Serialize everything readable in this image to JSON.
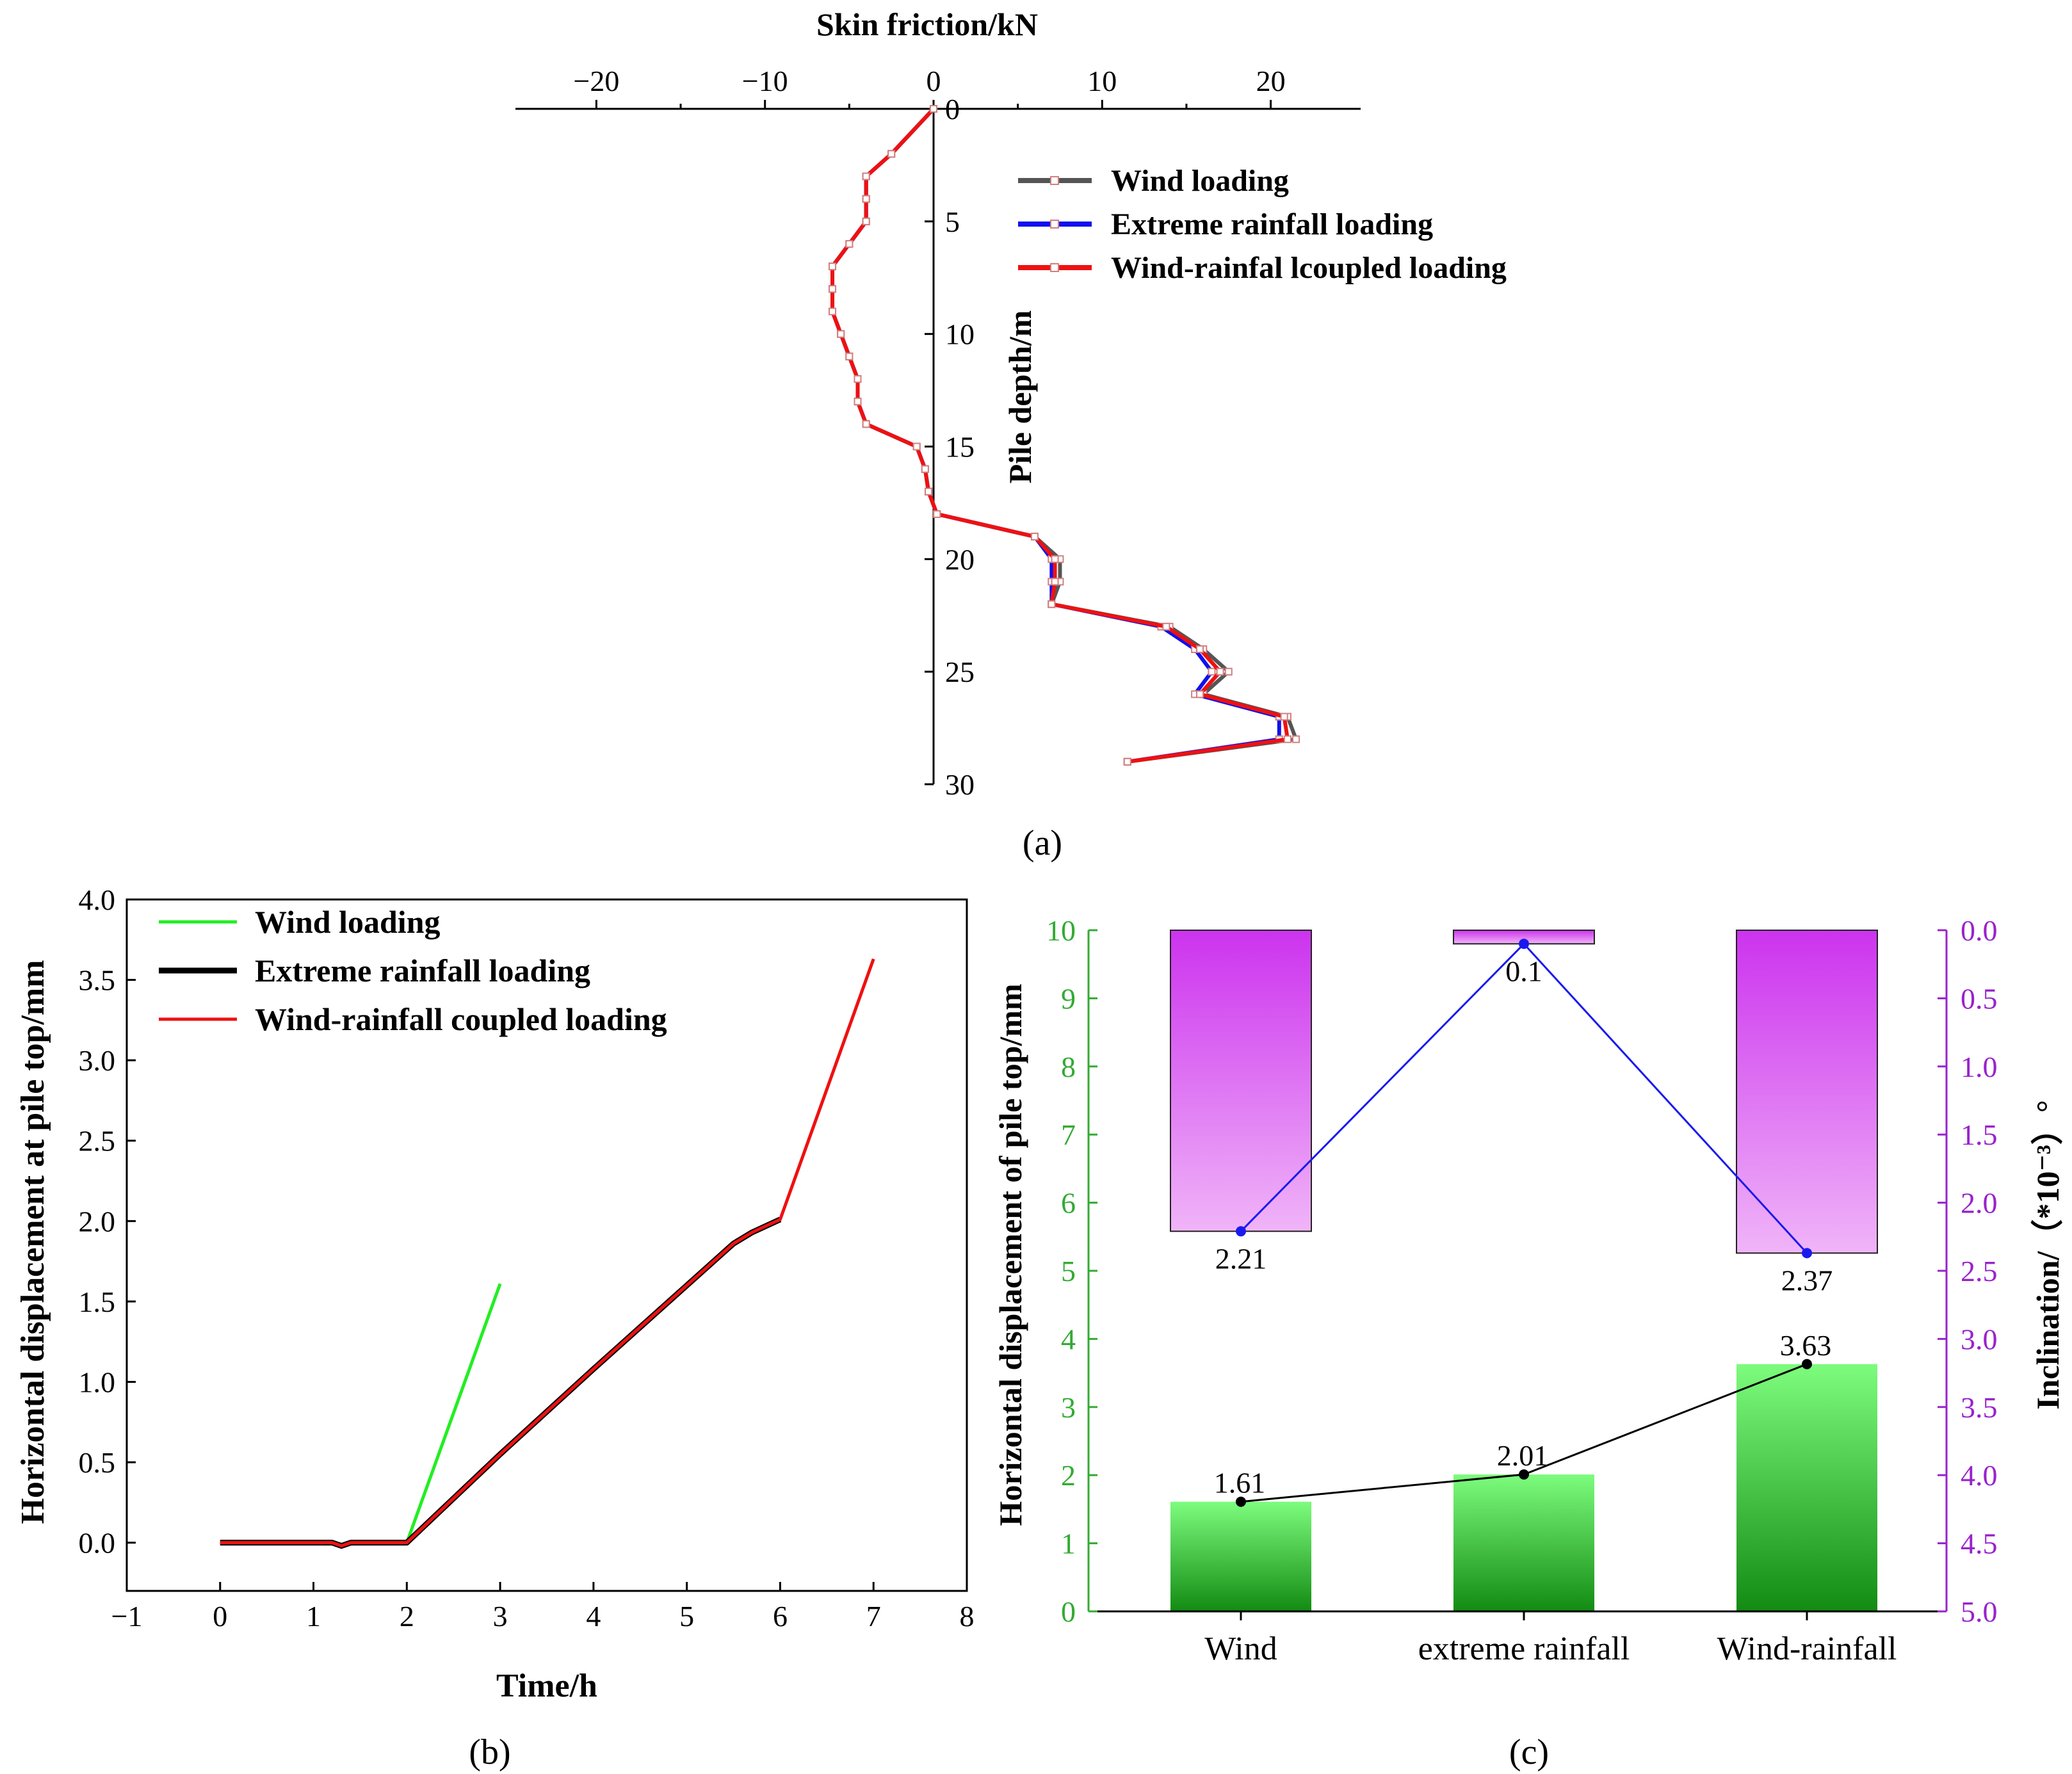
{
  "chart_data": [
    {
      "id": "a",
      "type": "line",
      "panel_label": "(a)",
      "xlabel": "Skin friction/kN",
      "ylabel": "Pile depth/m",
      "xlim": [
        -25,
        25
      ],
      "ylim": [
        0,
        30
      ],
      "x_ticks": [
        -20,
        -10,
        0,
        10,
        20
      ],
      "x_tick_labels": [
        "−20",
        "−10",
        "0",
        "10",
        "20"
      ],
      "y_ticks": [
        0,
        5,
        10,
        15,
        20,
        25,
        30
      ],
      "legend": "top-right",
      "series": [
        {
          "name": "Wind loading",
          "color": "#555555",
          "points": [
            [
              0,
              0
            ],
            [
              -2.5,
              2
            ],
            [
              -4,
              3
            ],
            [
              -4,
              4
            ],
            [
              -4,
              5
            ],
            [
              -5,
              6
            ],
            [
              -6,
              7
            ],
            [
              -6,
              8
            ],
            [
              -6,
              9
            ],
            [
              -5.5,
              10
            ],
            [
              -5,
              11
            ],
            [
              -4.5,
              12
            ],
            [
              -4.5,
              13
            ],
            [
              -4,
              14
            ],
            [
              -1,
              15
            ],
            [
              -0.5,
              16
            ],
            [
              -0.3,
              17
            ],
            [
              0.2,
              18
            ],
            [
              6,
              19
            ],
            [
              7.5,
              20
            ],
            [
              7.5,
              21
            ],
            [
              7,
              22
            ],
            [
              14,
              23
            ],
            [
              16,
              24
            ],
            [
              17.5,
              25
            ],
            [
              16,
              26
            ],
            [
              21,
              27
            ],
            [
              21.5,
              28
            ],
            [
              11.5,
              29
            ]
          ]
        },
        {
          "name": "Extreme rainfall loading",
          "color": "#1010ee",
          "points": [
            [
              0,
              0
            ],
            [
              -2.5,
              2
            ],
            [
              -4,
              3
            ],
            [
              -4,
              4
            ],
            [
              -4,
              5
            ],
            [
              -5,
              6
            ],
            [
              -6,
              7
            ],
            [
              -6,
              8
            ],
            [
              -6,
              9
            ],
            [
              -5.5,
              10
            ],
            [
              -5,
              11
            ],
            [
              -4.5,
              12
            ],
            [
              -4.5,
              13
            ],
            [
              -4,
              14
            ],
            [
              -1,
              15
            ],
            [
              -0.5,
              16
            ],
            [
              -0.3,
              17
            ],
            [
              0.2,
              18
            ],
            [
              6,
              19
            ],
            [
              7,
              20
            ],
            [
              7,
              21
            ],
            [
              7,
              22
            ],
            [
              13.5,
              23
            ],
            [
              15.5,
              24
            ],
            [
              16.5,
              25
            ],
            [
              15.5,
              26
            ],
            [
              20.5,
              27
            ],
            [
              20.5,
              28
            ],
            [
              11.5,
              29
            ]
          ]
        },
        {
          "name": "Wind-rainfal lcoupled loading",
          "color": "#ee1111",
          "points": [
            [
              0,
              0
            ],
            [
              -2.5,
              2
            ],
            [
              -4,
              3
            ],
            [
              -4,
              4
            ],
            [
              -4,
              5
            ],
            [
              -5,
              6
            ],
            [
              -6,
              7
            ],
            [
              -6,
              8
            ],
            [
              -6,
              9
            ],
            [
              -5.5,
              10
            ],
            [
              -5,
              11
            ],
            [
              -4.5,
              12
            ],
            [
              -4.5,
              13
            ],
            [
              -4,
              14
            ],
            [
              -1,
              15
            ],
            [
              -0.5,
              16
            ],
            [
              -0.3,
              17
            ],
            [
              0.2,
              18
            ],
            [
              6,
              19
            ],
            [
              7.2,
              20
            ],
            [
              7.2,
              21
            ],
            [
              7,
              22
            ],
            [
              13.8,
              23
            ],
            [
              15.8,
              24
            ],
            [
              17,
              25
            ],
            [
              15.8,
              26
            ],
            [
              20.8,
              27
            ],
            [
              21,
              28
            ],
            [
              11.5,
              29
            ]
          ]
        }
      ]
    },
    {
      "id": "b",
      "type": "line",
      "panel_label": "(b)",
      "xlabel": "Time/h",
      "ylabel": "Horizontal displacement at pile top/mm",
      "xlim": [
        -1,
        8
      ],
      "ylim": [
        -0.3,
        4.0
      ],
      "x_ticks": [
        -1,
        0,
        1,
        2,
        3,
        4,
        5,
        6,
        7,
        8
      ],
      "x_tick_labels": [
        "−1",
        "0",
        "1",
        "2",
        "3",
        "4",
        "5",
        "6",
        "7",
        "8"
      ],
      "y_ticks": [
        0.0,
        0.5,
        1.0,
        1.5,
        2.0,
        2.5,
        3.0,
        3.5,
        4.0
      ],
      "y_tick_labels": [
        "0.0",
        "0.5",
        "1.0",
        "1.5",
        "2.0",
        "2.5",
        "3.0",
        "3.5",
        "4.0"
      ],
      "legend": "top-left",
      "series": [
        {
          "name": "Wind loading",
          "color": "#22ee22",
          "points": [
            [
              0,
              0
            ],
            [
              1.2,
              0
            ],
            [
              1.3,
              -0.02
            ],
            [
              1.4,
              0
            ],
            [
              2,
              0
            ],
            [
              3,
              1.61
            ]
          ]
        },
        {
          "name": "Extreme rainfall loading",
          "color": "#000000",
          "points": [
            [
              0,
              0
            ],
            [
              1.2,
              0
            ],
            [
              1.3,
              -0.02
            ],
            [
              1.4,
              0
            ],
            [
              2,
              0
            ],
            [
              3,
              0.55
            ],
            [
              4,
              1.08
            ],
            [
              5,
              1.6
            ],
            [
              5.5,
              1.86
            ],
            [
              5.7,
              1.93
            ],
            [
              6,
              2.01
            ]
          ]
        },
        {
          "name": "Wind-rainfall coupled loading",
          "color": "#ee1111",
          "points": [
            [
              0,
              0
            ],
            [
              1.2,
              0
            ],
            [
              1.3,
              -0.02
            ],
            [
              1.4,
              0
            ],
            [
              2,
              0
            ],
            [
              3,
              0.55
            ],
            [
              4,
              1.08
            ],
            [
              5,
              1.6
            ],
            [
              5.5,
              1.86
            ],
            [
              5.7,
              1.93
            ],
            [
              6,
              2.01
            ],
            [
              7,
              3.63
            ]
          ]
        }
      ]
    },
    {
      "id": "c",
      "type": "bar",
      "panel_label": "(c)",
      "categories": [
        "Wind",
        "extreme rainfall",
        "Wind-rainfall"
      ],
      "ylabel_left": "Horizontal displacement of pile top/mm",
      "ylabel_right": "Inclination/（*10⁻³）°",
      "ylim_left": [
        0,
        10
      ],
      "ylim_right_inverted": [
        0.0,
        5.0
      ],
      "left_ticks": [
        0,
        1,
        2,
        3,
        4,
        5,
        6,
        7,
        8,
        9,
        10
      ],
      "right_ticks": [
        "0.0",
        "0.5",
        "1.0",
        "1.5",
        "2.0",
        "2.5",
        "3.0",
        "3.5",
        "4.0",
        "4.5",
        "5.0"
      ],
      "right_tick_values": [
        0.0,
        0.5,
        1.0,
        1.5,
        2.0,
        2.5,
        3.0,
        3.5,
        4.0,
        4.5,
        5.0
      ],
      "series": [
        {
          "name": "Horizontal displacement",
          "axis": "left",
          "values": [
            1.61,
            2.01,
            3.63
          ],
          "labels": [
            "1.61",
            "2.01",
            "3.63"
          ],
          "bar_color": "#33cc33",
          "line_color": "#000000"
        },
        {
          "name": "Inclination",
          "axis": "right",
          "values": [
            2.21,
            0.1,
            2.37
          ],
          "labels": [
            "2.21",
            "0.1",
            "2.37"
          ],
          "bar_color": "#dd66ee",
          "line_color": "#1a1aee"
        }
      ],
      "colors": {
        "left_axis": "#33aa33",
        "right_axis": "#9922cc"
      }
    }
  ]
}
